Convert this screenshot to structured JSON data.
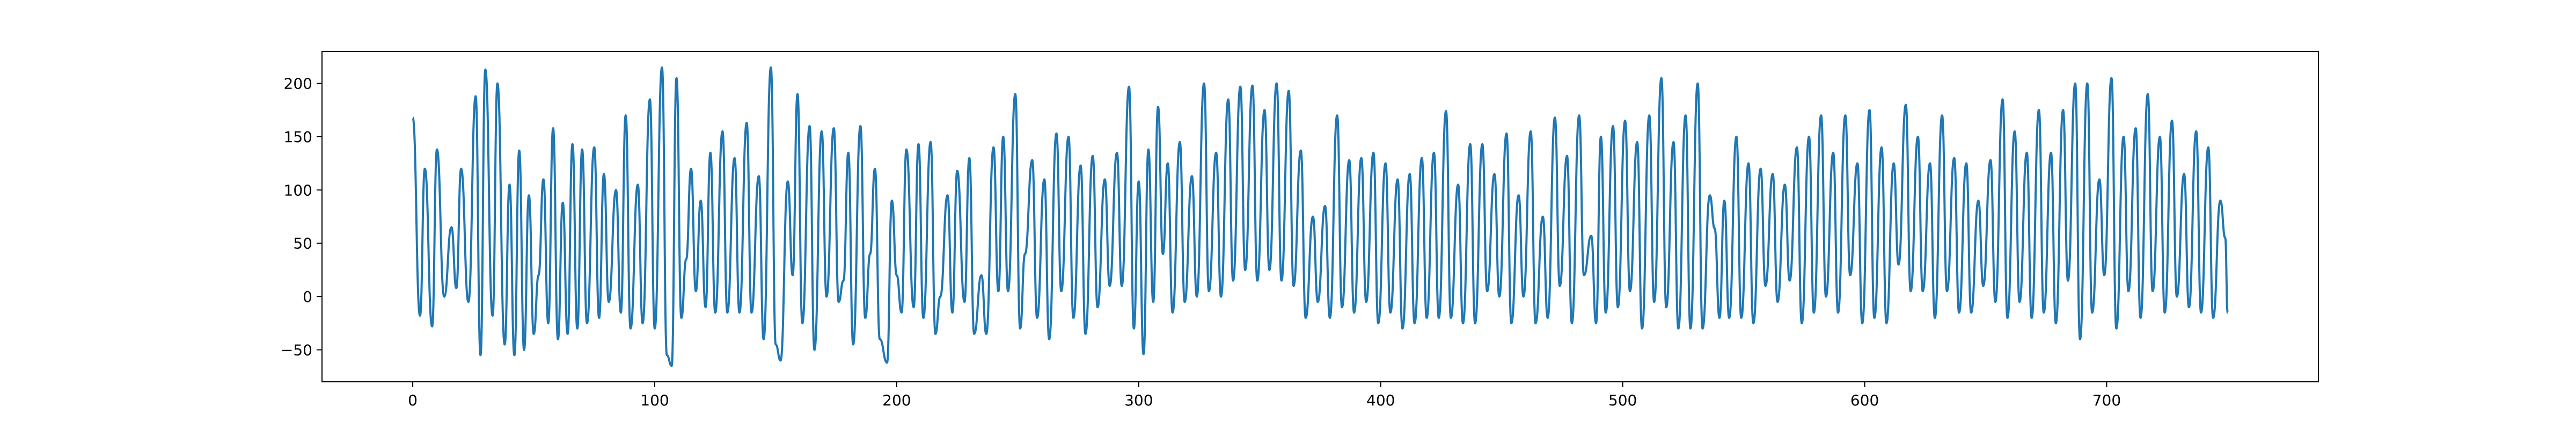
{
  "chart_data": {
    "type": "line",
    "title": "",
    "xlabel": "",
    "ylabel": "",
    "xlim": [
      -37.5,
      787.5
    ],
    "ylim": [
      -80,
      230
    ],
    "x_ticks": [
      0,
      100,
      200,
      300,
      400,
      500,
      600,
      700
    ],
    "y_ticks": [
      -50,
      0,
      50,
      100,
      150,
      200
    ],
    "x_tick_labels": [
      "0",
      "100",
      "200",
      "300",
      "400",
      "500",
      "600",
      "700"
    ],
    "y_tick_labels": [
      "−50",
      "0",
      "50",
      "100",
      "150",
      "200"
    ],
    "grid": false,
    "legend": "none",
    "series": [
      {
        "color": "#1f77b4",
        "points": [
          [
            0,
            168
          ],
          [
            3,
            -18
          ],
          [
            5,
            120
          ],
          [
            8,
            -28
          ],
          [
            10,
            138
          ],
          [
            13,
            0
          ],
          [
            16,
            65
          ],
          [
            18,
            8
          ],
          [
            20,
            120
          ],
          [
            23,
            -5
          ],
          [
            26,
            188
          ],
          [
            28,
            -55
          ],
          [
            30,
            213
          ],
          [
            33,
            -18
          ],
          [
            35,
            200
          ],
          [
            38,
            -45
          ],
          [
            40,
            105
          ],
          [
            42,
            -55
          ],
          [
            44,
            137
          ],
          [
            46,
            -50
          ],
          [
            48,
            95
          ],
          [
            50,
            -35
          ],
          [
            52,
            20
          ],
          [
            54,
            110
          ],
          [
            56,
            -25
          ],
          [
            58,
            158
          ],
          [
            60,
            -40
          ],
          [
            62,
            88
          ],
          [
            64,
            -35
          ],
          [
            66,
            143
          ],
          [
            68,
            -30
          ],
          [
            70,
            138
          ],
          [
            72,
            -25
          ],
          [
            75,
            140
          ],
          [
            77,
            -20
          ],
          [
            79,
            115
          ],
          [
            81,
            -5
          ],
          [
            84,
            100
          ],
          [
            86,
            -15
          ],
          [
            88,
            170
          ],
          [
            90,
            -30
          ],
          [
            93,
            105
          ],
          [
            95,
            -25
          ],
          [
            98,
            185
          ],
          [
            100,
            -30
          ],
          [
            103,
            215
          ],
          [
            105,
            -55
          ],
          [
            107,
            -65
          ],
          [
            109,
            205
          ],
          [
            111,
            -20
          ],
          [
            113,
            35
          ],
          [
            115,
            120
          ],
          [
            117,
            5
          ],
          [
            119,
            90
          ],
          [
            121,
            -10
          ],
          [
            123,
            135
          ],
          [
            125,
            -15
          ],
          [
            128,
            155
          ],
          [
            130,
            -15
          ],
          [
            133,
            130
          ],
          [
            135,
            -15
          ],
          [
            138,
            163
          ],
          [
            140,
            -15
          ],
          [
            143,
            113
          ],
          [
            145,
            -40
          ],
          [
            148,
            215
          ],
          [
            150,
            -45
          ],
          [
            152,
            -60
          ],
          [
            155,
            108
          ],
          [
            157,
            20
          ],
          [
            159,
            190
          ],
          [
            161,
            -25
          ],
          [
            164,
            160
          ],
          [
            166,
            -50
          ],
          [
            169,
            155
          ],
          [
            171,
            0
          ],
          [
            174,
            158
          ],
          [
            176,
            -5
          ],
          [
            178,
            15
          ],
          [
            180,
            135
          ],
          [
            182,
            -45
          ],
          [
            185,
            160
          ],
          [
            187,
            -20
          ],
          [
            189,
            40
          ],
          [
            191,
            120
          ],
          [
            193,
            -40
          ],
          [
            196,
            -62
          ],
          [
            198,
            90
          ],
          [
            200,
            20
          ],
          [
            202,
            -15
          ],
          [
            204,
            138
          ],
          [
            207,
            -10
          ],
          [
            209,
            143
          ],
          [
            211,
            -20
          ],
          [
            214,
            145
          ],
          [
            216,
            -35
          ],
          [
            218,
            0
          ],
          [
            221,
            95
          ],
          [
            223,
            -15
          ],
          [
            225,
            118
          ],
          [
            228,
            -5
          ],
          [
            230,
            130
          ],
          [
            232,
            -35
          ],
          [
            235,
            20
          ],
          [
            237,
            -35
          ],
          [
            240,
            140
          ],
          [
            242,
            5
          ],
          [
            244,
            150
          ],
          [
            246,
            5
          ],
          [
            249,
            190
          ],
          [
            251,
            -30
          ],
          [
            253,
            40
          ],
          [
            256,
            128
          ],
          [
            258,
            -20
          ],
          [
            261,
            110
          ],
          [
            263,
            -40
          ],
          [
            266,
            153
          ],
          [
            268,
            5
          ],
          [
            271,
            150
          ],
          [
            273,
            -20
          ],
          [
            276,
            123
          ],
          [
            278,
            -35
          ],
          [
            281,
            132
          ],
          [
            283,
            -10
          ],
          [
            286,
            110
          ],
          [
            288,
            10
          ],
          [
            291,
            135
          ],
          [
            293,
            10
          ],
          [
            296,
            197
          ],
          [
            298,
            -30
          ],
          [
            300,
            108
          ],
          [
            302,
            -54
          ],
          [
            304,
            138
          ],
          [
            306,
            -5
          ],
          [
            308,
            178
          ],
          [
            310,
            40
          ],
          [
            312,
            125
          ],
          [
            314,
            -15
          ],
          [
            317,
            145
          ],
          [
            319,
            -5
          ],
          [
            322,
            113
          ],
          [
            324,
            0
          ],
          [
            327,
            200
          ],
          [
            329,
            5
          ],
          [
            332,
            135
          ],
          [
            334,
            0
          ],
          [
            337,
            185
          ],
          [
            339,
            15
          ],
          [
            342,
            197
          ],
          [
            344,
            25
          ],
          [
            347,
            198
          ],
          [
            349,
            15
          ],
          [
            352,
            175
          ],
          [
            354,
            25
          ],
          [
            357,
            200
          ],
          [
            359,
            15
          ],
          [
            362,
            193
          ],
          [
            364,
            10
          ],
          [
            367,
            137
          ],
          [
            369,
            -20
          ],
          [
            372,
            75
          ],
          [
            374,
            -5
          ],
          [
            377,
            85
          ],
          [
            379,
            -20
          ],
          [
            382,
            170
          ],
          [
            384,
            -10
          ],
          [
            387,
            128
          ],
          [
            389,
            -15
          ],
          [
            392,
            130
          ],
          [
            394,
            -5
          ],
          [
            397,
            135
          ],
          [
            399,
            -25
          ],
          [
            402,
            125
          ],
          [
            404,
            -15
          ],
          [
            407,
            110
          ],
          [
            409,
            -30
          ],
          [
            412,
            115
          ],
          [
            414,
            -25
          ],
          [
            417,
            130
          ],
          [
            419,
            -20
          ],
          [
            422,
            135
          ],
          [
            424,
            -20
          ],
          [
            427,
            174
          ],
          [
            429,
            -20
          ],
          [
            432,
            105
          ],
          [
            434,
            -25
          ],
          [
            437,
            143
          ],
          [
            439,
            -25
          ],
          [
            442,
            143
          ],
          [
            444,
            5
          ],
          [
            447,
            115
          ],
          [
            449,
            0
          ],
          [
            452,
            153
          ],
          [
            454,
            -25
          ],
          [
            457,
            95
          ],
          [
            459,
            0
          ],
          [
            462,
            155
          ],
          [
            464,
            -25
          ],
          [
            467,
            75
          ],
          [
            469,
            -20
          ],
          [
            472,
            168
          ],
          [
            474,
            10
          ],
          [
            477,
            132
          ],
          [
            479,
            -25
          ],
          [
            482,
            170
          ],
          [
            484,
            20
          ],
          [
            487,
            57
          ],
          [
            489,
            -25
          ],
          [
            491,
            150
          ],
          [
            493,
            -15
          ],
          [
            496,
            160
          ],
          [
            498,
            -10
          ],
          [
            501,
            165
          ],
          [
            503,
            5
          ],
          [
            506,
            145
          ],
          [
            508,
            -30
          ],
          [
            511,
            170
          ],
          [
            513,
            -5
          ],
          [
            516,
            205
          ],
          [
            518,
            -10
          ],
          [
            521,
            145
          ],
          [
            523,
            -30
          ],
          [
            526,
            170
          ],
          [
            528,
            -30
          ],
          [
            531,
            200
          ],
          [
            533,
            -30
          ],
          [
            536,
            95
          ],
          [
            538,
            64
          ],
          [
            540,
            -20
          ],
          [
            542,
            90
          ],
          [
            544,
            -20
          ],
          [
            547,
            150
          ],
          [
            549,
            -20
          ],
          [
            552,
            125
          ],
          [
            554,
            -25
          ],
          [
            557,
            120
          ],
          [
            559,
            10
          ],
          [
            562,
            115
          ],
          [
            564,
            -5
          ],
          [
            567,
            105
          ],
          [
            569,
            15
          ],
          [
            572,
            140
          ],
          [
            574,
            -25
          ],
          [
            577,
            150
          ],
          [
            579,
            -15
          ],
          [
            582,
            170
          ],
          [
            584,
            0
          ],
          [
            587,
            135
          ],
          [
            589,
            -15
          ],
          [
            592,
            170
          ],
          [
            594,
            20
          ],
          [
            597,
            125
          ],
          [
            599,
            -25
          ],
          [
            602,
            175
          ],
          [
            604,
            -20
          ],
          [
            607,
            140
          ],
          [
            609,
            -25
          ],
          [
            612,
            125
          ],
          [
            614,
            30
          ],
          [
            617,
            180
          ],
          [
            619,
            5
          ],
          [
            622,
            150
          ],
          [
            624,
            5
          ],
          [
            627,
            125
          ],
          [
            629,
            -20
          ],
          [
            632,
            170
          ],
          [
            634,
            5
          ],
          [
            637,
            130
          ],
          [
            639,
            -15
          ],
          [
            642,
            125
          ],
          [
            644,
            -15
          ],
          [
            647,
            90
          ],
          [
            649,
            10
          ],
          [
            652,
            128
          ],
          [
            654,
            -5
          ],
          [
            657,
            185
          ],
          [
            659,
            -20
          ],
          [
            662,
            155
          ],
          [
            664,
            -5
          ],
          [
            667,
            135
          ],
          [
            669,
            -20
          ],
          [
            672,
            175
          ],
          [
            674,
            -15
          ],
          [
            677,
            135
          ],
          [
            679,
            -25
          ],
          [
            682,
            175
          ],
          [
            684,
            15
          ],
          [
            687,
            200
          ],
          [
            689,
            -40
          ],
          [
            692,
            200
          ],
          [
            694,
            -15
          ],
          [
            697,
            110
          ],
          [
            699,
            20
          ],
          [
            702,
            205
          ],
          [
            704,
            -30
          ],
          [
            707,
            150
          ],
          [
            709,
            5
          ],
          [
            712,
            158
          ],
          [
            714,
            -20
          ],
          [
            717,
            190
          ],
          [
            719,
            5
          ],
          [
            722,
            150
          ],
          [
            724,
            -15
          ],
          [
            727,
            165
          ],
          [
            729,
            0
          ],
          [
            732,
            115
          ],
          [
            734,
            -10
          ],
          [
            737,
            155
          ],
          [
            739,
            -15
          ],
          [
            742,
            140
          ],
          [
            744,
            -20
          ],
          [
            747,
            90
          ],
          [
            749,
            55
          ],
          [
            750,
            -15
          ]
        ]
      }
    ]
  }
}
